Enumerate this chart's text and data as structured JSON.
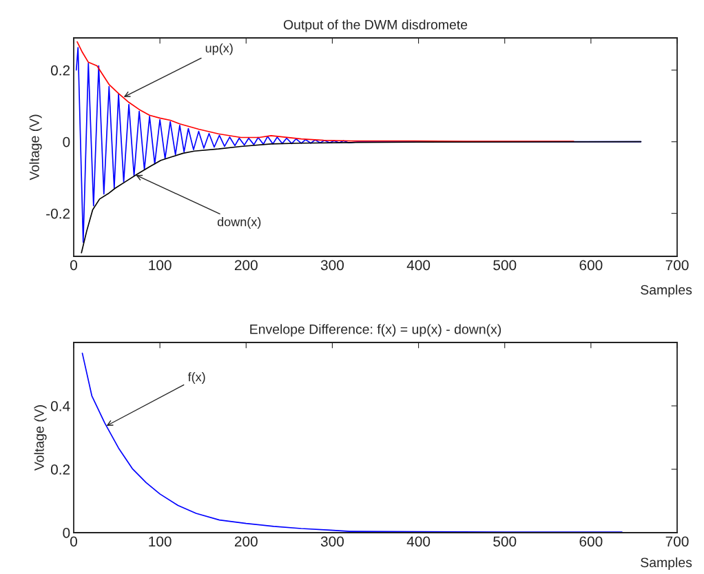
{
  "chart_data": [
    {
      "type": "line",
      "title": "Output of the DWM disdromete",
      "xlabel": "Samples",
      "ylabel": "Voltage (V)",
      "xlim": [
        0,
        700
      ],
      "xticks": [
        0,
        100,
        200,
        300,
        400,
        500,
        600,
        700
      ],
      "ylim": [
        -0.32,
        0.29
      ],
      "yticks": [
        {
          "value": -0.2,
          "label": "-0.2"
        },
        0,
        0.2
      ],
      "grid": false,
      "series": [
        {
          "color": "#0000ff",
          "x": [
            3,
            5,
            11,
            17,
            23,
            29,
            35,
            41,
            47,
            52,
            58,
            64,
            70,
            76,
            82,
            88,
            94,
            100,
            106,
            112,
            118,
            123,
            128,
            133,
            139,
            145,
            151,
            157,
            163,
            169,
            175,
            181,
            187,
            192,
            198,
            203,
            209,
            214,
            220,
            225,
            231,
            236,
            242,
            247,
            253,
            258,
            264,
            269,
            275,
            280,
            286,
            291,
            297,
            302,
            308,
            313,
            319,
            330,
            658
          ],
          "values": [
            0.2,
            0.263,
            -0.281,
            0.219,
            -0.179,
            0.212,
            -0.146,
            0.154,
            -0.13,
            0.133,
            -0.112,
            0.104,
            -0.095,
            0.085,
            -0.078,
            0.071,
            -0.062,
            0.062,
            -0.047,
            0.056,
            -0.036,
            0.046,
            -0.028,
            0.037,
            -0.022,
            0.029,
            -0.018,
            0.023,
            -0.015,
            0.018,
            -0.013,
            0.013,
            -0.011,
            0.01,
            -0.009,
            0.01,
            -0.008,
            0.012,
            -0.007,
            0.015,
            -0.006,
            0.013,
            -0.005,
            0.01,
            -0.005,
            0.008,
            -0.004,
            0.006,
            -0.004,
            0.005,
            -0.003,
            0.004,
            -0.003,
            0.003,
            -0.003,
            0.003,
            -0.003,
            0,
            0
          ]
        },
        {
          "color": "#ff0000",
          "x": [
            4,
            10,
            17,
            27,
            41,
            52,
            64,
            76,
            88,
            100,
            112,
            123,
            145,
            168,
            194,
            215,
            229,
            240,
            264,
            290,
            327,
            355,
            395,
            455,
            470,
            565,
            580
          ],
          "values": [
            0.279,
            0.25,
            0.222,
            0.212,
            0.16,
            0.135,
            0.11,
            0.09,
            0.074,
            0.066,
            0.06,
            0.05,
            0.035,
            0.022,
            0.012,
            0.012,
            0.017,
            0.014,
            0.008,
            0.004,
            0.002,
            0.002,
            0.002,
            0.001,
            0.001,
            0.001,
            0.001
          ]
        },
        {
          "color": "#000000",
          "x": [
            9,
            15,
            22,
            30,
            40,
            48,
            61,
            74,
            88,
            101,
            114,
            127,
            140,
            168,
            194,
            229,
            264,
            327,
            400,
            658
          ],
          "values": [
            -0.31,
            -0.25,
            -0.19,
            -0.16,
            -0.145,
            -0.13,
            -0.11,
            -0.09,
            -0.07,
            -0.052,
            -0.042,
            -0.032,
            -0.026,
            -0.02,
            -0.013,
            -0.006,
            -0.004,
            -0.002,
            -0.001,
            0
          ]
        }
      ],
      "annotations": [
        {
          "text": "up(x)",
          "x": 58,
          "y": 0.125
        },
        {
          "text": "down(x)",
          "x": 72,
          "y": -0.093
        }
      ]
    },
    {
      "type": "line",
      "title": "Envelope Difference: f(x) = up(x) - down(x)",
      "xlabel": "Samples",
      "ylabel": "Voltage (V)",
      "xlim": [
        0,
        700
      ],
      "xticks": [
        0,
        100,
        200,
        300,
        400,
        500,
        600,
        700
      ],
      "ylim": [
        0,
        0.6
      ],
      "yticks": [
        0,
        0.2,
        0.4
      ],
      "grid": false,
      "series": [
        {
          "color": "#0000ff",
          "x": [
            10,
            21,
            36,
            52,
            68,
            84,
            100,
            121,
            142,
            169,
            200,
            232,
            264,
            298,
            320,
            400,
            500,
            636
          ],
          "values": [
            0.566,
            0.432,
            0.346,
            0.267,
            0.202,
            0.158,
            0.122,
            0.086,
            0.061,
            0.04,
            0.029,
            0.02,
            0.013,
            0.008,
            0.004,
            0.003,
            0.002,
            0.002
          ]
        }
      ],
      "annotations": [
        {
          "text": "f(x)",
          "x": 38,
          "y": 0.337
        }
      ]
    }
  ]
}
